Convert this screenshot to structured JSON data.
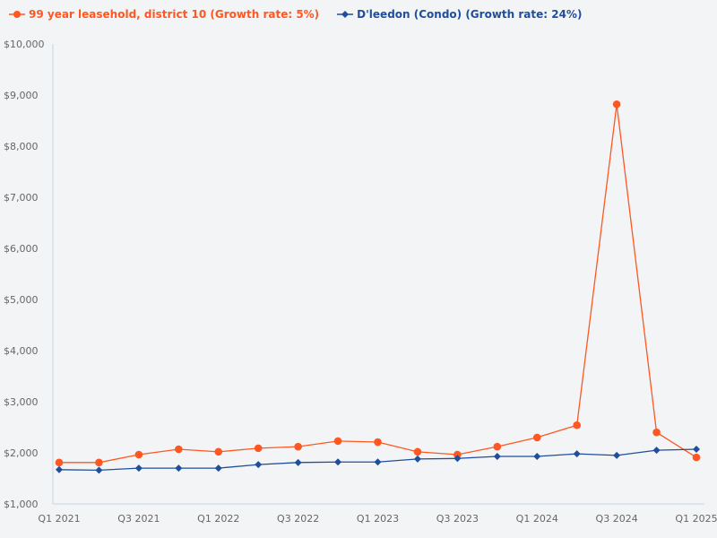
{
  "chart_data": {
    "type": "line",
    "categories": [
      "Q1 2021",
      "Q2 2021",
      "Q3 2021",
      "Q4 2021",
      "Q1 2022",
      "Q2 2022",
      "Q3 2022",
      "Q4 2022",
      "Q1 2023",
      "Q2 2023",
      "Q3 2023",
      "Q4 2023",
      "Q1 2024",
      "Q2 2024",
      "Q3 2024",
      "Q4 2024",
      "Q1 2025"
    ],
    "x_tick_labels": [
      "Q1 2021",
      "Q3 2021",
      "Q1 2022",
      "Q3 2022",
      "Q1 2023",
      "Q3 2023",
      "Q1 2024",
      "Q3 2024",
      "Q1 2025"
    ],
    "y_tick_labels": [
      "$1,000",
      "$2,000",
      "$3,000",
      "$4,000",
      "$5,000",
      "$6,000",
      "$7,000",
      "$8,000",
      "$9,000",
      "$10,000"
    ],
    "ylim": [
      1000,
      10000
    ],
    "grid": false,
    "legend_position": "top-left",
    "series": [
      {
        "name": "99 year leasehold, district 10 (Growth rate: 5%)",
        "color": "#ff5722",
        "marker": "circle",
        "values": [
          1810,
          1810,
          1965,
          2070,
          2020,
          2090,
          2120,
          2230,
          2210,
          2020,
          1965,
          2120,
          2300,
          2540,
          8820,
          2400,
          1910
        ]
      },
      {
        "name": "D'leedon (Condo) (Growth rate: 24%)",
        "color": "#1f4e9c",
        "marker": "diamond",
        "values": [
          1670,
          1660,
          1700,
          1700,
          1700,
          1770,
          1810,
          1820,
          1820,
          1880,
          1890,
          1930,
          1930,
          1980,
          1950,
          2050,
          2070
        ]
      }
    ]
  }
}
